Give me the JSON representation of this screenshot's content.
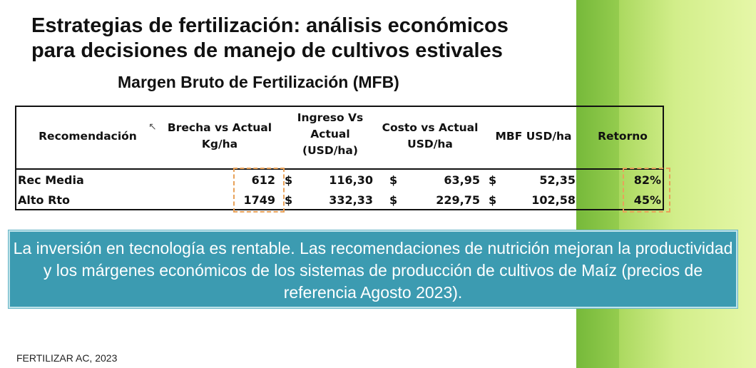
{
  "title_line1": "Estrategias de fertilización: análisis económicos",
  "title_line2": "para decisiones de manejo de cultivos estivales",
  "subtitle": "Margen Bruto de Fertilización (MFB)",
  "table": {
    "headers": [
      "Recomendación",
      "Brecha vs Actual Kg/ha",
      "Ingreso Vs Actual (USD/ha)",
      "Costo vs Actual USD/ha",
      "MBF USD/ha",
      "Retorno"
    ],
    "header_lines": {
      "h0": "Recomendación",
      "h1a": "Brecha vs Actual",
      "h1b": "Kg/ha",
      "h2a": "Ingreso Vs",
      "h2b": "Actual",
      "h2c": "(USD/ha)",
      "h3a": "Costo vs Actual",
      "h3b": "USD/ha",
      "h4": "MBF USD/ha",
      "h5": "Retorno"
    },
    "rows": [
      {
        "name": "Rec Media",
        "brecha": "612",
        "cur1": "$",
        "ingreso": "116,30",
        "cur2": "$",
        "costo": "63,95",
        "cur3": "$",
        "mbf": "52,35",
        "retorno": "82%"
      },
      {
        "name": "Alto Rto",
        "brecha": "1749",
        "cur1": "$",
        "ingreso": "332,33",
        "cur2": "$",
        "costo": "229,75",
        "cur3": "$",
        "mbf": "102,58",
        "retorno": "45%"
      }
    ]
  },
  "note": "La inversión en tecnología es rentable. Las recomendaciones de nutrición mejoran la productividad y los márgenes económicos de los sistemas de producción de cultivos de Maíz (precios de referencia Agosto 2023).",
  "footer": "FERTILIZAR AC, 2023",
  "colors": {
    "accent_green": "#7fc241",
    "note_bg": "#3c9bb1",
    "highlight": "#e8a25a"
  }
}
